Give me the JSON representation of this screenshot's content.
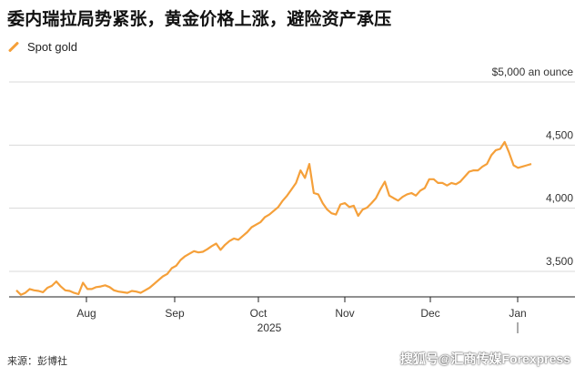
{
  "title": "委内瑞拉局势紧张，黄金价格上涨，避险资产承压",
  "source": "来源：彭博社",
  "watermark": "搜狐号@汇商传媒Forexpress",
  "colors": {
    "line": "#f5a03a",
    "grid": "#d8d8d8",
    "axis": "#222222"
  },
  "chart_data": {
    "type": "line",
    "series": [
      {
        "name": "Spot gold",
        "values": [
          3350,
          3315,
          3330,
          3360,
          3350,
          3345,
          3335,
          3370,
          3385,
          3420,
          3380,
          3350,
          3345,
          3330,
          3320,
          3410,
          3360,
          3360,
          3375,
          3380,
          3390,
          3375,
          3350,
          3340,
          3335,
          3330,
          3345,
          3340,
          3330,
          3350,
          3370,
          3400,
          3430,
          3460,
          3480,
          3525,
          3545,
          3590,
          3620,
          3640,
          3660,
          3650,
          3655,
          3675,
          3700,
          3720,
          3670,
          3710,
          3740,
          3760,
          3750,
          3780,
          3810,
          3850,
          3870,
          3890,
          3930,
          3950,
          3980,
          4010,
          4060,
          4100,
          4150,
          4200,
          4300,
          4240,
          4350,
          4120,
          4110,
          4040,
          3990,
          3960,
          3950,
          4030,
          4040,
          4010,
          4020,
          3940,
          3990,
          4005,
          4040,
          4080,
          4150,
          4210,
          4100,
          4080,
          4060,
          4090,
          4110,
          4120,
          4100,
          4140,
          4160,
          4230,
          4230,
          4200,
          4200,
          4180,
          4200,
          4190,
          4210,
          4250,
          4290,
          4300,
          4300,
          4330,
          4350,
          4420,
          4460,
          4470,
          4525,
          4440,
          4340,
          4320,
          4330,
          4340,
          4350
        ]
      }
    ],
    "x_ticks": [
      "Aug",
      "Sep",
      "Oct",
      "Nov",
      "Dec",
      "Jan"
    ],
    "x_year_label": "2025",
    "y_ticks": [
      "3,500",
      "4,000",
      "4,500",
      "$5,000 an ounce"
    ],
    "y_tick_values": [
      3500,
      4000,
      4500,
      5000
    ],
    "ylim": [
      3260,
      5060
    ],
    "grid": true,
    "legend": "top-left"
  }
}
